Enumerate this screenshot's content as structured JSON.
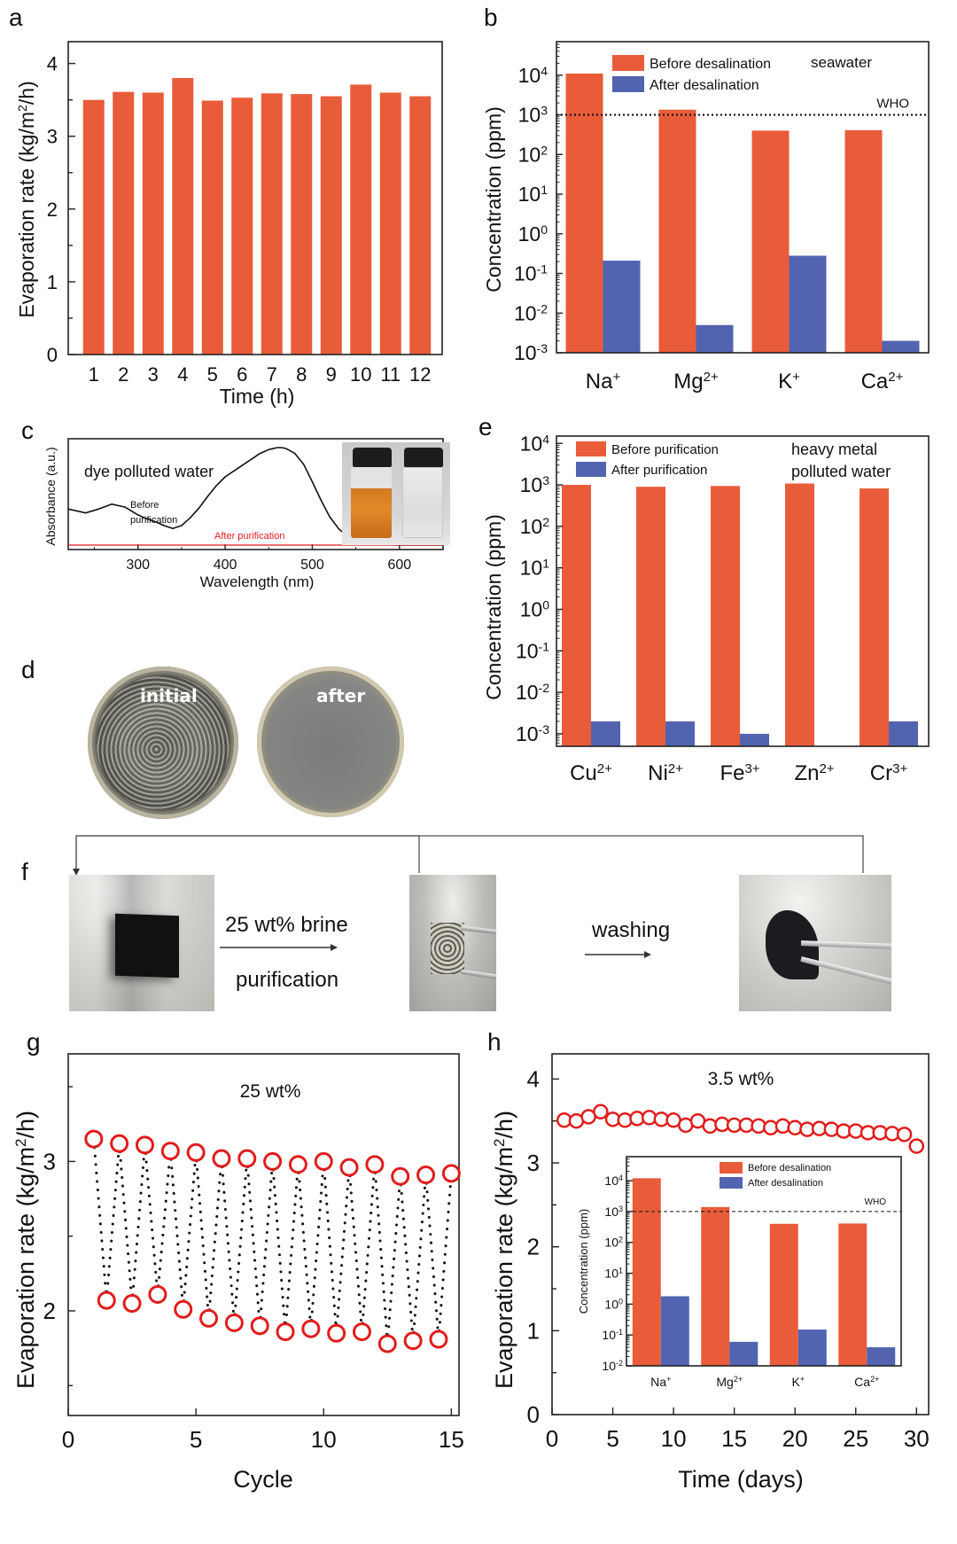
{
  "colors": {
    "before": "#E95C3A",
    "after": "#5264B0",
    "marker": "#E21C1C",
    "curve": "#111111",
    "after_curve": "#E21C1C",
    "axis": "#222222"
  },
  "panel_labels": {
    "a": "a",
    "b": "b",
    "c": "c",
    "d": "d",
    "e": "e",
    "f": "f",
    "g": "g",
    "h": "h"
  },
  "chart_data": [
    {
      "id": "a",
      "type": "bar",
      "title": "",
      "xlabel": "Time (h)",
      "ylabel": "Evaporation rate (kg/m²/h)",
      "categories": [
        "1",
        "2",
        "3",
        "4",
        "5",
        "6",
        "7",
        "8",
        "9",
        "10",
        "11",
        "12"
      ],
      "values": [
        3.5,
        3.61,
        3.6,
        3.8,
        3.49,
        3.53,
        3.59,
        3.58,
        3.55,
        3.71,
        3.6,
        3.55
      ],
      "ylim": [
        0,
        4.3
      ],
      "yticks": [
        0,
        1,
        2,
        3,
        4
      ],
      "grid": false
    },
    {
      "id": "b",
      "type": "bar",
      "yscale": "log",
      "xlabel": "",
      "ylabel": "Concentration (ppm)",
      "categories": [
        "Na⁺",
        "Mg²⁺",
        "K⁺",
        "Ca²⁺"
      ],
      "series": [
        {
          "name": "Before desalination",
          "values": [
            11000,
            1350,
            400,
            410
          ]
        },
        {
          "name": "After desalination",
          "values": [
            0.21,
            0.005,
            0.28,
            0.002
          ]
        }
      ],
      "ylim": [
        0.001,
        70000
      ],
      "yticks": [
        "10⁻³",
        "10⁻²",
        "10⁻¹",
        "10⁰",
        "10¹",
        "10²",
        "10³",
        "10⁴"
      ],
      "reference_line": {
        "label": "WHO",
        "value": 1000,
        "style": "dotted"
      },
      "annotation": "seawater",
      "legend": "top-center"
    },
    {
      "id": "c",
      "type": "line",
      "xlabel": "Wavelength (nm)",
      "ylabel": "Absorbance (a.u.)",
      "xlim": [
        220,
        650
      ],
      "xticks": [
        300,
        400,
        500,
        600
      ],
      "annotation": "dye polluted water",
      "series": [
        {
          "name": "Before purification",
          "x": [
            220,
            240,
            255,
            270,
            285,
            300,
            310,
            320,
            330,
            340,
            350,
            360,
            370,
            380,
            390,
            400,
            410,
            420,
            430,
            440,
            450,
            460,
            465,
            470,
            480,
            490,
            500,
            510,
            520,
            530,
            540,
            550,
            560,
            570,
            580,
            600,
            620,
            650
          ],
          "y": [
            0.37,
            0.33,
            0.37,
            0.42,
            0.39,
            0.31,
            0.27,
            0.24,
            0.2,
            0.17,
            0.2,
            0.28,
            0.38,
            0.5,
            0.61,
            0.7,
            0.76,
            0.82,
            0.88,
            0.94,
            0.98,
            1.0,
            1.0,
            0.99,
            0.94,
            0.83,
            0.65,
            0.46,
            0.29,
            0.17,
            0.09,
            0.05,
            0.025,
            0.01,
            0.005,
            0.0,
            0.0,
            0.0
          ]
        },
        {
          "name": "After purification",
          "x": [
            220,
            650
          ],
          "y": [
            0.0,
            0.0
          ]
        }
      ],
      "inset": "photo of two vials: orange dye solution before, clear after"
    },
    {
      "id": "e",
      "type": "bar",
      "yscale": "log",
      "xlabel": "",
      "ylabel": "Concentration (ppm)",
      "categories": [
        "Cu²⁺",
        "Ni²⁺",
        "Fe³⁺",
        "Zn²⁺",
        "Cr³⁺"
      ],
      "series": [
        {
          "name": "Before purification",
          "values": [
            1000,
            900,
            940,
            1080,
            820
          ]
        },
        {
          "name": "After purification",
          "values": [
            0.002,
            0.002,
            0.001,
            null,
            0.002
          ]
        }
      ],
      "ylim": [
        0.0005,
        15000
      ],
      "yticks": [
        "10⁻³",
        "10⁻²",
        "10⁻¹",
        "10⁰",
        "10¹",
        "10²",
        "10³",
        "10⁴"
      ],
      "annotation": "heavy metal polluted water",
      "legend": "top-left"
    },
    {
      "id": "g",
      "type": "scatter",
      "xlabel": "Cycle",
      "ylabel": "Evaporation rate (kg/m²/h)",
      "annotation": "25 wt%",
      "xlim": [
        0,
        15.3
      ],
      "ylim": [
        1.3,
        3.72
      ],
      "xticks": [
        0,
        5,
        10,
        15
      ],
      "yticks": [
        2,
        3
      ],
      "series": [
        {
          "name": "cycle",
          "x": [
            1,
            1.5,
            2,
            2.5,
            3,
            3.5,
            4,
            4.5,
            5,
            5.5,
            6,
            6.5,
            7,
            7.5,
            8,
            8.5,
            9,
            9.5,
            10,
            10.5,
            11,
            11.5,
            12,
            12.5,
            13,
            13.5,
            14,
            14.5,
            15
          ],
          "y": [
            3.15,
            2.07,
            3.12,
            2.05,
            3.11,
            2.11,
            3.07,
            2.01,
            3.06,
            1.95,
            3.02,
            1.92,
            3.02,
            1.9,
            3.0,
            1.86,
            2.98,
            1.88,
            3.0,
            1.85,
            2.96,
            1.86,
            2.98,
            1.78,
            2.9,
            1.8,
            2.91,
            1.81,
            2.92
          ]
        }
      ],
      "connector": "dotted"
    },
    {
      "id": "h",
      "type": "scatter",
      "xlabel": "Time (days)",
      "ylabel": "Evaporation rate (kg/m²/h)",
      "annotation": "3.5 wt%",
      "xlim": [
        0,
        31
      ],
      "ylim": [
        0,
        4.3
      ],
      "xticks": [
        0,
        5,
        10,
        15,
        20,
        25,
        30
      ],
      "yticks": [
        0,
        1,
        2,
        3,
        4
      ],
      "series": [
        {
          "name": "3.5 wt%",
          "x": [
            1,
            2,
            3,
            4,
            5,
            6,
            7,
            8,
            9,
            10,
            11,
            12,
            13,
            14,
            15,
            16,
            17,
            18,
            19,
            20,
            21,
            22,
            23,
            24,
            25,
            26,
            27,
            28,
            29,
            30
          ],
          "y": [
            3.51,
            3.5,
            3.55,
            3.61,
            3.52,
            3.51,
            3.53,
            3.54,
            3.52,
            3.51,
            3.45,
            3.5,
            3.44,
            3.46,
            3.45,
            3.45,
            3.44,
            3.42,
            3.44,
            3.42,
            3.4,
            3.41,
            3.4,
            3.38,
            3.38,
            3.36,
            3.36,
            3.35,
            3.34,
            3.2
          ]
        }
      ],
      "inset": {
        "type": "bar",
        "yscale": "log",
        "ylabel": "Concentration (ppm)",
        "categories": [
          "Na⁺",
          "Mg²⁺",
          "K⁺",
          "Ca²⁺"
        ],
        "series": [
          {
            "name": "Before desalination",
            "values": [
              12000,
              1400,
              400,
              410
            ]
          },
          {
            "name": "After desalination",
            "values": [
              1.8,
              0.06,
              0.15,
              0.04
            ]
          }
        ],
        "ylim": [
          0.01,
          60000
        ],
        "yticks": [
          "10⁻²",
          "10⁻¹",
          "10⁰",
          "10¹",
          "10²",
          "10³",
          "10⁴"
        ],
        "reference_line": {
          "label": "WHO",
          "value": 1000,
          "style": "dashed"
        },
        "legend": "top-right"
      }
    }
  ],
  "panel_d": {
    "left_label": "initial",
    "right_label": "after"
  },
  "panel_f": {
    "step1_top": "25 wt% brine",
    "step1_bottom": "purification",
    "step2": "washing"
  }
}
